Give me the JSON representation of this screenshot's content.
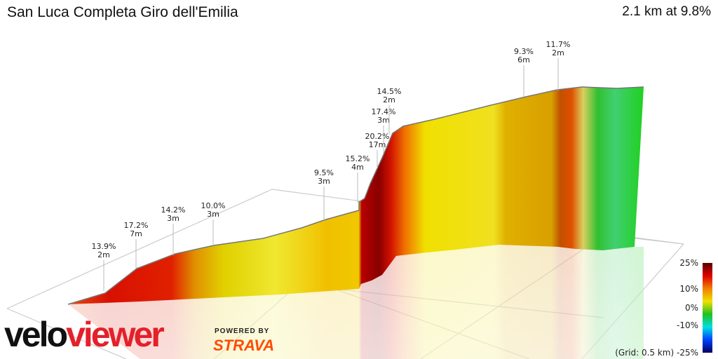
{
  "header": {
    "title": "San Luca Completa Giro dell'Emilia",
    "summary": "2.1 km at 9.8%"
  },
  "chart_data": {
    "type": "area",
    "title": "San Luca Completa Giro dell'Emilia",
    "subtitle": "2.1 km at 9.8%",
    "grid": true,
    "grid_note": "(Grid: 0.5 km)",
    "annotations": [
      {
        "grade": "13.9%",
        "length": "2m"
      },
      {
        "grade": "17.2%",
        "length": "7m"
      },
      {
        "grade": "14.2%",
        "length": "3m"
      },
      {
        "grade": "10.0%",
        "length": "3m"
      },
      {
        "grade": "9.5%",
        "length": "3m"
      },
      {
        "grade": "15.2%",
        "length": "4m"
      },
      {
        "grade": "20.2%",
        "length": "17m"
      },
      {
        "grade": "17.4%",
        "length": "3m"
      },
      {
        "grade": "14.5%",
        "length": "2m"
      },
      {
        "grade": "9.3%",
        "length": "6m"
      },
      {
        "grade": "11.7%",
        "length": "2m"
      }
    ],
    "legend": {
      "placement": "bottom-right",
      "ticks": [
        "25%",
        "10%",
        "0%",
        "-10%",
        "-25%"
      ],
      "colors": [
        "#5a0000",
        "#e00000",
        "#f08000",
        "#f0e000",
        "#20c020",
        "#00e0e0",
        "#0040ff",
        "#000060"
      ]
    }
  },
  "branding": {
    "logo_a": "velo",
    "logo_b": "viewer",
    "powered": "POWERED BY",
    "strava": "STRAVA"
  }
}
